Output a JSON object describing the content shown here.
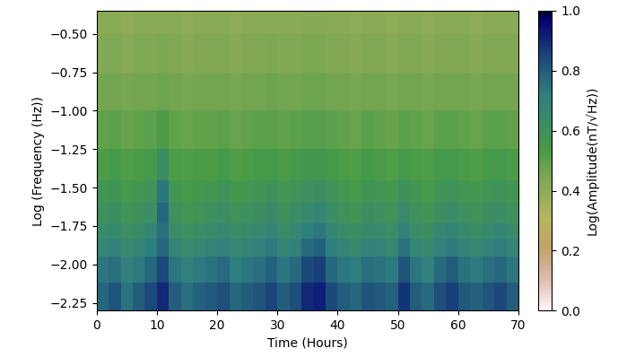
{
  "chart_data": {
    "type": "heatmap",
    "xlabel": "Time (Hours)",
    "ylabel": "Log (Frequency (Hz))",
    "colorbar_label": "Log(Amplitude(nT/√Hz))",
    "xlim": [
      0,
      70
    ],
    "xticks": [
      0,
      10,
      20,
      30,
      40,
      50,
      60,
      70
    ],
    "ylim": [
      -2.3,
      -0.35
    ],
    "yticks": [
      {
        "value": -2.25,
        "label": "−2.25"
      },
      {
        "value": -2.0,
        "label": "−2.00"
      },
      {
        "value": -1.75,
        "label": "−1.75"
      },
      {
        "value": -1.5,
        "label": "−1.50"
      },
      {
        "value": -1.25,
        "label": "−1.25"
      },
      {
        "value": -1.0,
        "label": "−1.00"
      },
      {
        "value": -0.75,
        "label": "−0.75"
      },
      {
        "value": -0.5,
        "label": "−0.50"
      }
    ],
    "clim": [
      0.0,
      1.0
    ],
    "cticks": [
      0.0,
      0.2,
      0.4,
      0.6,
      0.8,
      1.0
    ],
    "x_edges": [
      0,
      2,
      4,
      6,
      8,
      10,
      12,
      14,
      16,
      18,
      20,
      22,
      24,
      26,
      28,
      30,
      32,
      34,
      36,
      38,
      40,
      42,
      44,
      46,
      48,
      50,
      52,
      54,
      56,
      58,
      60,
      62,
      64,
      66,
      68,
      70
    ],
    "y_edges": [
      -2.3,
      -2.12,
      -1.95,
      -1.83,
      -1.73,
      -1.6,
      -1.45,
      -1.25,
      -1.0,
      -0.75,
      -0.5,
      -0.35
    ],
    "cells": [
      [
        0.78,
        0.82,
        0.75,
        0.8,
        0.84,
        0.9,
        0.8,
        0.76,
        0.79,
        0.81,
        0.83,
        0.78,
        0.8,
        0.82,
        0.85,
        0.8,
        0.83,
        0.9,
        0.92,
        0.84,
        0.8,
        0.78,
        0.82,
        0.81,
        0.79,
        0.88,
        0.8,
        0.77,
        0.83,
        0.86,
        0.81,
        0.79,
        0.82,
        0.84,
        0.8
      ],
      [
        0.74,
        0.76,
        0.7,
        0.73,
        0.78,
        0.84,
        0.74,
        0.71,
        0.73,
        0.75,
        0.77,
        0.72,
        0.74,
        0.76,
        0.79,
        0.74,
        0.77,
        0.84,
        0.86,
        0.78,
        0.74,
        0.72,
        0.76,
        0.75,
        0.73,
        0.82,
        0.74,
        0.71,
        0.77,
        0.8,
        0.75,
        0.73,
        0.76,
        0.78,
        0.74
      ],
      [
        0.68,
        0.7,
        0.66,
        0.68,
        0.72,
        0.78,
        0.68,
        0.65,
        0.67,
        0.69,
        0.71,
        0.67,
        0.69,
        0.7,
        0.73,
        0.68,
        0.71,
        0.77,
        0.79,
        0.72,
        0.68,
        0.66,
        0.7,
        0.69,
        0.67,
        0.75,
        0.68,
        0.66,
        0.71,
        0.73,
        0.69,
        0.67,
        0.7,
        0.72,
        0.68
      ],
      [
        0.64,
        0.66,
        0.62,
        0.64,
        0.68,
        0.76,
        0.64,
        0.61,
        0.63,
        0.65,
        0.67,
        0.63,
        0.65,
        0.66,
        0.69,
        0.64,
        0.67,
        0.72,
        0.74,
        0.68,
        0.64,
        0.62,
        0.66,
        0.65,
        0.63,
        0.7,
        0.64,
        0.62,
        0.67,
        0.69,
        0.65,
        0.63,
        0.66,
        0.68,
        0.64
      ],
      [
        0.6,
        0.62,
        0.58,
        0.6,
        0.63,
        0.78,
        0.6,
        0.57,
        0.59,
        0.61,
        0.63,
        0.59,
        0.61,
        0.62,
        0.65,
        0.6,
        0.63,
        0.66,
        0.68,
        0.63,
        0.6,
        0.58,
        0.62,
        0.61,
        0.59,
        0.65,
        0.6,
        0.58,
        0.62,
        0.64,
        0.61,
        0.59,
        0.62,
        0.63,
        0.6
      ],
      [
        0.57,
        0.58,
        0.55,
        0.57,
        0.59,
        0.74,
        0.57,
        0.55,
        0.56,
        0.57,
        0.59,
        0.56,
        0.57,
        0.58,
        0.6,
        0.57,
        0.59,
        0.61,
        0.62,
        0.59,
        0.57,
        0.55,
        0.58,
        0.57,
        0.56,
        0.6,
        0.57,
        0.55,
        0.58,
        0.59,
        0.57,
        0.56,
        0.58,
        0.59,
        0.57
      ],
      [
        0.53,
        0.54,
        0.52,
        0.53,
        0.55,
        0.62,
        0.53,
        0.52,
        0.53,
        0.53,
        0.54,
        0.52,
        0.53,
        0.54,
        0.55,
        0.53,
        0.54,
        0.56,
        0.56,
        0.54,
        0.53,
        0.52,
        0.54,
        0.53,
        0.52,
        0.55,
        0.53,
        0.52,
        0.54,
        0.55,
        0.53,
        0.52,
        0.54,
        0.55,
        0.53
      ],
      [
        0.49,
        0.5,
        0.48,
        0.49,
        0.5,
        0.53,
        0.49,
        0.48,
        0.49,
        0.49,
        0.5,
        0.48,
        0.49,
        0.5,
        0.5,
        0.49,
        0.5,
        0.51,
        0.51,
        0.5,
        0.49,
        0.48,
        0.5,
        0.49,
        0.48,
        0.5,
        0.49,
        0.48,
        0.5,
        0.5,
        0.49,
        0.48,
        0.5,
        0.5,
        0.49
      ],
      [
        0.46,
        0.46,
        0.45,
        0.46,
        0.46,
        0.47,
        0.46,
        0.45,
        0.46,
        0.46,
        0.46,
        0.45,
        0.46,
        0.46,
        0.47,
        0.46,
        0.46,
        0.47,
        0.47,
        0.46,
        0.46,
        0.45,
        0.46,
        0.46,
        0.45,
        0.46,
        0.46,
        0.45,
        0.46,
        0.46,
        0.46,
        0.45,
        0.46,
        0.46,
        0.46
      ],
      [
        0.43,
        0.43,
        0.42,
        0.43,
        0.43,
        0.44,
        0.43,
        0.42,
        0.43,
        0.43,
        0.43,
        0.42,
        0.43,
        0.43,
        0.44,
        0.43,
        0.43,
        0.44,
        0.44,
        0.43,
        0.43,
        0.42,
        0.43,
        0.43,
        0.42,
        0.43,
        0.43,
        0.42,
        0.43,
        0.43,
        0.43,
        0.42,
        0.43,
        0.43,
        0.43
      ],
      [
        0.41,
        0.41,
        0.4,
        0.41,
        0.41,
        0.41,
        0.41,
        0.4,
        0.41,
        0.41,
        0.41,
        0.4,
        0.41,
        0.41,
        0.41,
        0.41,
        0.41,
        0.42,
        0.42,
        0.41,
        0.41,
        0.4,
        0.41,
        0.41,
        0.4,
        0.41,
        0.41,
        0.4,
        0.41,
        0.41,
        0.41,
        0.4,
        0.41,
        0.41,
        0.41
      ]
    ]
  }
}
